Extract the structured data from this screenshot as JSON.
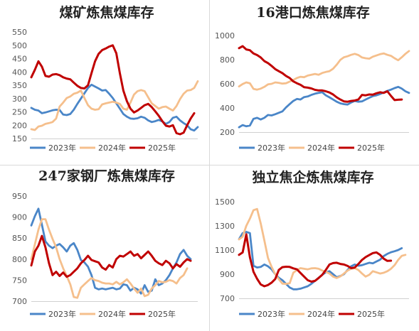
{
  "chart_data": [
    {
      "type": "line",
      "title": "煤矿炼焦煤库存",
      "ylim": [
        150,
        550
      ],
      "yticks": [
        "150",
        "200",
        "250",
        "300",
        "350",
        "400",
        "450",
        "500",
        "550"
      ],
      "legend_position": "bottom",
      "series": [
        {
          "name": "2023年",
          "color": "#4a86c8",
          "values": [
            265,
            258,
            255,
            245,
            248,
            252,
            256,
            258,
            257,
            240,
            238,
            242,
            258,
            280,
            300,
            320,
            340,
            352,
            345,
            338,
            330,
            332,
            318,
            302,
            282,
            262,
            242,
            232,
            225,
            224,
            226,
            232,
            228,
            218,
            212,
            215,
            220,
            214,
            205,
            212,
            228,
            232,
            218,
            208,
            200,
            185,
            180,
            193
          ]
        },
        {
          "name": "2024年",
          "color": "#f5bf8c",
          "values": [
            185,
            182,
            195,
            198,
            205,
            208,
            212,
            225,
            270,
            285,
            302,
            308,
            318,
            322,
            330,
            302,
            275,
            262,
            258,
            260,
            278,
            282,
            285,
            288,
            285,
            280,
            262,
            258,
            285,
            315,
            328,
            332,
            328,
            305,
            282,
            272,
            262,
            268,
            270,
            262,
            255,
            272,
            298,
            318,
            330,
            332,
            340,
            365
          ]
        },
        {
          "name": "2025年",
          "color": "#c00000",
          "values": [
            380,
            408,
            440,
            420,
            385,
            382,
            390,
            392,
            388,
            380,
            375,
            372,
            360,
            348,
            340,
            338,
            350,
            395,
            440,
            468,
            482,
            488,
            495,
            500,
            470,
            395,
            330,
            290,
            262,
            248,
            255,
            265,
            275,
            280,
            268,
            252,
            235,
            215,
            198,
            195,
            200,
            170,
            166,
            172,
            200,
            225,
            245
          ]
        }
      ]
    },
    {
      "type": "line",
      "title": "16港口炼焦煤库存",
      "ylim": [
        200,
        1000
      ],
      "yticks": [
        "200",
        "400",
        "600",
        "800",
        "1000"
      ],
      "legend_position": "bottom",
      "series": [
        {
          "name": "2023年",
          "color": "#4a86c8",
          "values": [
            240,
            258,
            248,
            255,
            310,
            318,
            305,
            318,
            342,
            338,
            348,
            360,
            372,
            405,
            432,
            458,
            475,
            470,
            490,
            495,
            508,
            518,
            525,
            530,
            505,
            488,
            470,
            452,
            438,
            432,
            428,
            445,
            458,
            452,
            455,
            470,
            485,
            498,
            505,
            515,
            528,
            542,
            552,
            565,
            575,
            560,
            538,
            525
          ]
        },
        {
          "name": "2024年",
          "color": "#f5bf8c",
          "values": [
            578,
            598,
            612,
            605,
            558,
            552,
            560,
            575,
            595,
            600,
            612,
            608,
            602,
            605,
            618,
            632,
            648,
            658,
            655,
            668,
            675,
            682,
            675,
            690,
            698,
            705,
            725,
            758,
            798,
            820,
            828,
            840,
            848,
            838,
            818,
            812,
            808,
            825,
            835,
            845,
            852,
            840,
            832,
            812,
            795,
            820,
            848,
            872
          ]
        },
        {
          "name": "2025年",
          "color": "#c00000",
          "values": [
            895,
            912,
            885,
            878,
            852,
            838,
            818,
            788,
            772,
            748,
            722,
            705,
            688,
            665,
            648,
            620,
            605,
            592,
            572,
            568,
            562,
            550,
            545,
            545,
            538,
            528,
            512,
            488,
            470,
            455,
            452,
            458,
            462,
            470,
            508,
            505,
            512,
            510,
            522,
            530,
            525,
            538,
            500,
            465,
            468,
            470
          ]
        }
      ]
    },
    {
      "type": "line",
      "title": "247家钢厂炼焦煤库存",
      "ylim": [
        700,
        950
      ],
      "yticks": [
        "700",
        "750",
        "800",
        "850",
        "900",
        "950"
      ],
      "legend_position": "bottom",
      "series": [
        {
          "name": "2023年",
          "color": "#4a86c8",
          "values": [
            880,
            902,
            920,
            882,
            842,
            832,
            826,
            832,
            836,
            828,
            818,
            832,
            838,
            822,
            798,
            792,
            782,
            762,
            732,
            728,
            730,
            728,
            730,
            732,
            728,
            730,
            740,
            738,
            725,
            732,
            728,
            718,
            738,
            722,
            725,
            752,
            738,
            742,
            750,
            762,
            778,
            792,
            812,
            822,
            808,
            800
          ]
        },
        {
          "name": "2024年",
          "color": "#f5bf8c",
          "values": [
            800,
            835,
            870,
            895,
            895,
            870,
            848,
            828,
            800,
            778,
            760,
            740,
            710,
            708,
            732,
            740,
            748,
            755,
            750,
            748,
            744,
            742,
            742,
            740,
            746,
            740,
            745,
            752,
            742,
            730,
            720,
            730,
            712,
            715,
            730,
            738,
            748,
            745,
            746,
            750,
            748,
            742,
            755,
            762,
            778
          ]
        },
        {
          "name": "2025年",
          "color": "#c00000",
          "values": [
            785,
            818,
            832,
            855,
            828,
            790,
            762,
            770,
            760,
            768,
            758,
            762,
            770,
            778,
            790,
            798,
            808,
            798,
            795,
            792,
            780,
            775,
            786,
            780,
            800,
            808,
            806,
            812,
            818,
            808,
            812,
            802,
            810,
            818,
            808,
            796,
            790,
            786,
            796,
            790,
            778,
            788,
            782,
            792,
            800,
            796
          ]
        }
      ]
    },
    {
      "type": "line",
      "title": "独立焦企炼焦煤库存",
      "ylim": [
        700,
        1500
      ],
      "yticks": [
        "700",
        "900",
        "1100",
        "1300",
        "1500"
      ],
      "legend_position": "bottom",
      "series": [
        {
          "name": "2023年",
          "color": "#4a86c8",
          "values": [
            1190,
            1240,
            1250,
            1240,
            970,
            955,
            960,
            980,
            965,
            940,
            900,
            870,
            850,
            820,
            790,
            775,
            775,
            780,
            790,
            800,
            820,
            845,
            870,
            895,
            915,
            925,
            900,
            875,
            885,
            900,
            935,
            965,
            980,
            970,
            975,
            985,
            995,
            990,
            1005,
            1020,
            1050,
            1068,
            1082,
            1090,
            1100,
            1115
          ]
        },
        {
          "name": "2024年",
          "color": "#f5bf8c",
          "values": [
            1188,
            1210,
            1300,
            1360,
            1430,
            1440,
            1320,
            1180,
            1035,
            960,
            900,
            858,
            822,
            820,
            825,
            912,
            935,
            950,
            945,
            940,
            948,
            950,
            945,
            930,
            920,
            905,
            880,
            868,
            882,
            905,
            930,
            945,
            950,
            935,
            905,
            880,
            895,
            925,
            915,
            905,
            912,
            925,
            945,
            975,
            1018,
            1052,
            1060
          ]
        },
        {
          "name": "2025年",
          "color": "#c00000",
          "values": [
            1060,
            1080,
            1230,
            1040,
            920,
            862,
            815,
            800,
            810,
            830,
            860,
            935,
            958,
            962,
            960,
            948,
            940,
            910,
            880,
            850,
            838,
            845,
            868,
            895,
            935,
            980,
            992,
            995,
            985,
            980,
            968,
            950,
            955,
            985,
            1018,
            1042,
            1058,
            1075,
            1080,
            1060,
            1028,
            1010,
            1012
          ]
        }
      ]
    }
  ]
}
